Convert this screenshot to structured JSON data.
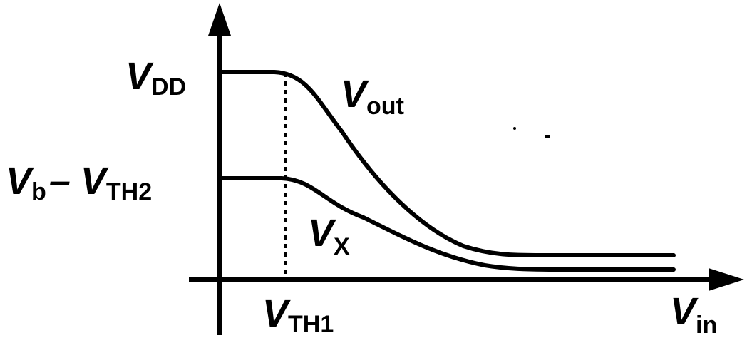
{
  "labels": {
    "vdd": {
      "v": "V",
      "sub": "DD"
    },
    "vout": {
      "v": "V",
      "sub": "out"
    },
    "vb_vth2": {
      "v": "V",
      "sub": "b",
      "sep": "–",
      "v2": "V",
      "sub2": "TH2"
    },
    "vx": {
      "v": "V",
      "sub": "X"
    },
    "vth1": {
      "v": "V",
      "sub": "TH1"
    },
    "vin": {
      "v": "V",
      "sub": "in"
    }
  }
}
